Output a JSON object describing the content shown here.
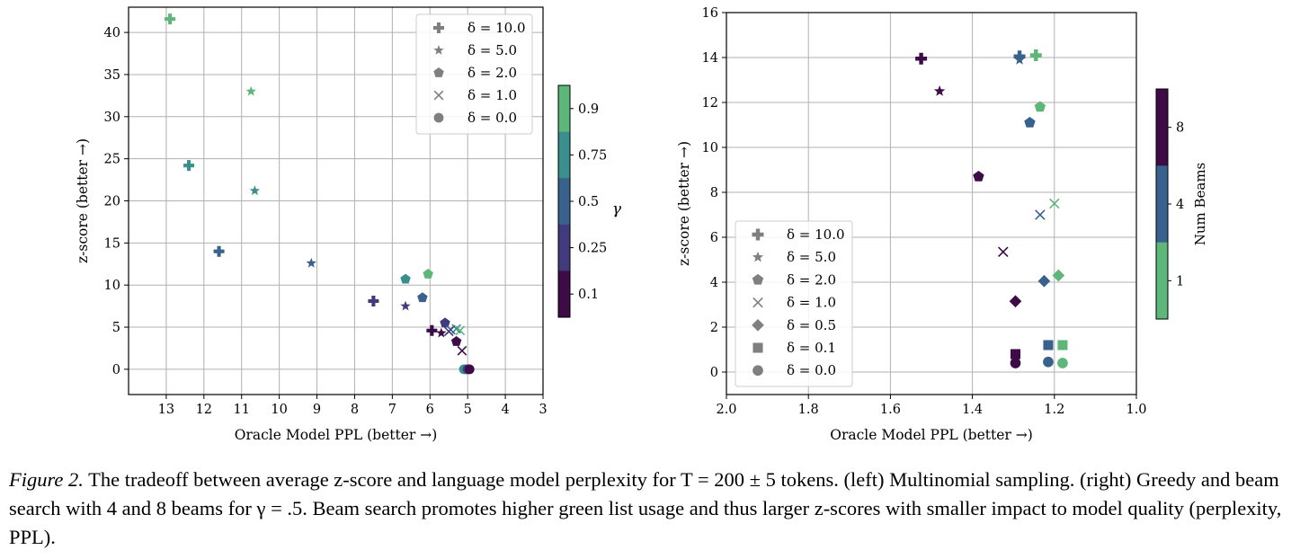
{
  "caption": {
    "label": "Figure 2.",
    "text": " The tradeoff between average z-score and language model perplexity for T = 200 ± 5 tokens. (left) Multinomial sampling. (right) Greedy and beam search with 4 and 8 beams for γ = .5. Beam search promotes higher green list usage and thus larger z-scores with smaller impact to model quality (perplexity, PPL)."
  },
  "colors": {
    "gamma_0.1": "#5db778",
    "gamma_0.25": "#3a8f8c",
    "gamma_0.5": "#38628d",
    "gamma_0.75": "#413b7d",
    "gamma_0.9": "#3d0c47",
    "beams_1": "#3d0c47",
    "beams_4": "#38628d",
    "beams_8": "#5db778",
    "legend_marker": "#7f7f7f"
  },
  "chart_data": [
    {
      "type": "scatter",
      "xlabel": "Oracle Model PPL (better →)",
      "ylabel": "z-score (better →)",
      "x_inverted": true,
      "xlim": [
        14,
        3
      ],
      "ylim": [
        -3,
        43
      ],
      "xticks": [
        13,
        12,
        11,
        10,
        9,
        8,
        7,
        6,
        5,
        4,
        3
      ],
      "yticks": [
        0,
        5,
        10,
        15,
        20,
        25,
        30,
        35,
        40
      ],
      "grid": true,
      "legend_position": "top-right",
      "legend": [
        {
          "marker": "plus",
          "label": "δ = 10.0"
        },
        {
          "marker": "star",
          "label": "δ = 5.0"
        },
        {
          "marker": "pentagon",
          "label": "δ = 2.0"
        },
        {
          "marker": "x",
          "label": "δ = 1.0"
        },
        {
          "marker": "circle",
          "label": "δ = 0.0"
        }
      ],
      "colorbar": {
        "label": "γ",
        "ticks": [
          "0.1",
          "0.25",
          "0.5",
          "0.75",
          "0.9"
        ],
        "colors": [
          "#5db778",
          "#3a8f8c",
          "#38628d",
          "#413b7d",
          "#3d0c47"
        ]
      },
      "points": [
        {
          "delta": "10.0",
          "marker": "plus",
          "gamma": "0.1",
          "x": 12.9,
          "y": 41.6
        },
        {
          "delta": "10.0",
          "marker": "plus",
          "gamma": "0.25",
          "x": 12.4,
          "y": 24.2
        },
        {
          "delta": "10.0",
          "marker": "plus",
          "gamma": "0.5",
          "x": 11.6,
          "y": 14.0
        },
        {
          "delta": "10.0",
          "marker": "plus",
          "gamma": "0.75",
          "x": 7.5,
          "y": 8.1
        },
        {
          "delta": "10.0",
          "marker": "plus",
          "gamma": "0.9",
          "x": 5.95,
          "y": 4.6
        },
        {
          "delta": "5.0",
          "marker": "star",
          "gamma": "0.1",
          "x": 10.75,
          "y": 33.0
        },
        {
          "delta": "5.0",
          "marker": "star",
          "gamma": "0.25",
          "x": 10.65,
          "y": 21.2
        },
        {
          "delta": "5.0",
          "marker": "star",
          "gamma": "0.5",
          "x": 9.15,
          "y": 12.6
        },
        {
          "delta": "5.0",
          "marker": "star",
          "gamma": "0.75",
          "x": 6.65,
          "y": 7.5
        },
        {
          "delta": "5.0",
          "marker": "star",
          "gamma": "0.9",
          "x": 5.7,
          "y": 4.3
        },
        {
          "delta": "2.0",
          "marker": "pentagon",
          "gamma": "0.1",
          "x": 6.05,
          "y": 11.3
        },
        {
          "delta": "2.0",
          "marker": "pentagon",
          "gamma": "0.25",
          "x": 6.65,
          "y": 10.7
        },
        {
          "delta": "2.0",
          "marker": "pentagon",
          "gamma": "0.5",
          "x": 6.2,
          "y": 8.5
        },
        {
          "delta": "2.0",
          "marker": "pentagon",
          "gamma": "0.75",
          "x": 5.6,
          "y": 5.5
        },
        {
          "delta": "2.0",
          "marker": "pentagon",
          "gamma": "0.9",
          "x": 5.3,
          "y": 3.3
        },
        {
          "delta": "1.0",
          "marker": "x",
          "gamma": "0.1",
          "x": 5.2,
          "y": 4.6
        },
        {
          "delta": "1.0",
          "marker": "x",
          "gamma": "0.25",
          "x": 5.3,
          "y": 4.8
        },
        {
          "delta": "1.0",
          "marker": "x",
          "gamma": "0.5",
          "x": 5.45,
          "y": 4.7
        },
        {
          "delta": "1.0",
          "marker": "x",
          "gamma": "0.75",
          "x": 5.5,
          "y": 4.5
        },
        {
          "delta": "1.0",
          "marker": "x",
          "gamma": "0.9",
          "x": 5.15,
          "y": 2.2
        },
        {
          "delta": "0.0",
          "marker": "circle",
          "gamma": "0.1",
          "x": 5.05,
          "y": 0.0
        },
        {
          "delta": "0.0",
          "marker": "circle",
          "gamma": "0.25",
          "x": 5.1,
          "y": 0.0
        },
        {
          "delta": "0.0",
          "marker": "circle",
          "gamma": "0.5",
          "x": 5.0,
          "y": 0.0
        },
        {
          "delta": "0.0",
          "marker": "circle",
          "gamma": "0.75",
          "x": 5.0,
          "y": 0.0
        },
        {
          "delta": "0.0",
          "marker": "circle",
          "gamma": "0.9",
          "x": 4.95,
          "y": 0.0
        }
      ]
    },
    {
      "type": "scatter",
      "xlabel": "Oracle Model PPL (better →)",
      "ylabel": "z-score (better →)",
      "x_inverted": true,
      "xlim": [
        2.0,
        1.0
      ],
      "ylim": [
        -1,
        16
      ],
      "xticks": [
        "2.0",
        "1.8",
        "1.6",
        "1.4",
        "1.2",
        "1.0"
      ],
      "yticks": [
        0,
        2,
        4,
        6,
        8,
        10,
        12,
        14,
        16
      ],
      "grid": true,
      "legend_position": "lower-left",
      "legend": [
        {
          "marker": "plus",
          "label": "δ = 10.0"
        },
        {
          "marker": "star",
          "label": "δ = 5.0"
        },
        {
          "marker": "pentagon",
          "label": "δ = 2.0"
        },
        {
          "marker": "x",
          "label": "δ = 1.0"
        },
        {
          "marker": "diamond",
          "label": "δ = 0.5"
        },
        {
          "marker": "square",
          "label": "δ = 0.1"
        },
        {
          "marker": "circle",
          "label": "δ = 0.0"
        }
      ],
      "colorbar": {
        "label": "Num Beams",
        "ticks": [
          "1",
          "4",
          "8"
        ],
        "colors": [
          "#3d0c47",
          "#38628d",
          "#5db778"
        ]
      },
      "points": [
        {
          "delta": "10.0",
          "marker": "plus",
          "beams": "1",
          "x": 1.525,
          "y": 13.95
        },
        {
          "delta": "10.0",
          "marker": "plus",
          "beams": "4",
          "x": 1.285,
          "y": 14.05
        },
        {
          "delta": "10.0",
          "marker": "plus",
          "beams": "8",
          "x": 1.245,
          "y": 14.1
        },
        {
          "delta": "5.0",
          "marker": "star",
          "beams": "1",
          "x": 1.48,
          "y": 12.5
        },
        {
          "delta": "5.0",
          "marker": "star",
          "beams": "4",
          "x": 1.285,
          "y": 13.9
        },
        {
          "delta": "2.0",
          "marker": "pentagon",
          "beams": "1",
          "x": 1.385,
          "y": 8.7
        },
        {
          "delta": "2.0",
          "marker": "pentagon",
          "beams": "4",
          "x": 1.26,
          "y": 11.1
        },
        {
          "delta": "2.0",
          "marker": "pentagon",
          "beams": "8",
          "x": 1.235,
          "y": 11.8
        },
        {
          "delta": "1.0",
          "marker": "x",
          "beams": "1",
          "x": 1.325,
          "y": 5.35
        },
        {
          "delta": "1.0",
          "marker": "x",
          "beams": "4",
          "x": 1.235,
          "y": 7.0
        },
        {
          "delta": "1.0",
          "marker": "x",
          "beams": "8",
          "x": 1.2,
          "y": 7.5
        },
        {
          "delta": "0.5",
          "marker": "diamond",
          "beams": "1",
          "x": 1.295,
          "y": 3.15
        },
        {
          "delta": "0.5",
          "marker": "diamond",
          "beams": "4",
          "x": 1.225,
          "y": 4.05
        },
        {
          "delta": "0.5",
          "marker": "diamond",
          "beams": "8",
          "x": 1.19,
          "y": 4.3
        },
        {
          "delta": "0.1",
          "marker": "square",
          "beams": "1",
          "x": 1.295,
          "y": 0.8
        },
        {
          "delta": "0.1",
          "marker": "square",
          "beams": "4",
          "x": 1.215,
          "y": 1.2
        },
        {
          "delta": "0.1",
          "marker": "square",
          "beams": "8",
          "x": 1.18,
          "y": 1.2
        },
        {
          "delta": "0.0",
          "marker": "circle",
          "beams": "1",
          "x": 1.295,
          "y": 0.4
        },
        {
          "delta": "0.0",
          "marker": "circle",
          "beams": "4",
          "x": 1.215,
          "y": 0.45
        },
        {
          "delta": "0.0",
          "marker": "circle",
          "beams": "8",
          "x": 1.18,
          "y": 0.4
        }
      ]
    }
  ]
}
